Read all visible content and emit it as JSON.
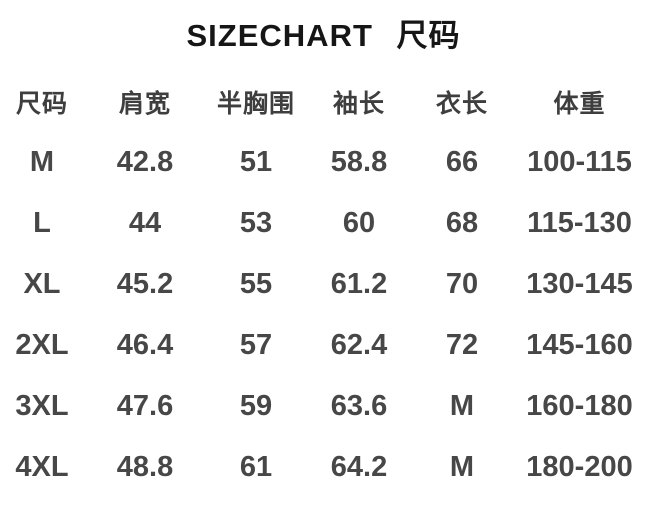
{
  "title": "SIZECHART 尺码",
  "colors": {
    "background": "#ffffff",
    "title_text": "#161616",
    "header_text": "#3e3e3e",
    "cell_text": "#474747"
  },
  "chart_data": {
    "type": "table",
    "title": "SIZECHART 尺码",
    "columns": [
      "尺码",
      "肩宽",
      "半胸围",
      "袖长",
      "衣长",
      "体重"
    ],
    "rows": [
      [
        "M",
        "42.8",
        "51",
        "58.8",
        "66",
        "100-115"
      ],
      [
        "L",
        "44",
        "53",
        "60",
        "68",
        "115-130"
      ],
      [
        "XL",
        "45.2",
        "55",
        "61.2",
        "70",
        "130-145"
      ],
      [
        "2XL",
        "46.4",
        "57",
        "62.4",
        "72",
        "145-160"
      ],
      [
        "3XL",
        "47.6",
        "59",
        "63.6",
        "M",
        "160-180"
      ],
      [
        "4XL",
        "48.8",
        "61",
        "64.2",
        "M",
        "180-200"
      ]
    ],
    "layout": {
      "grid": false,
      "borders": false,
      "header_row": true
    }
  }
}
